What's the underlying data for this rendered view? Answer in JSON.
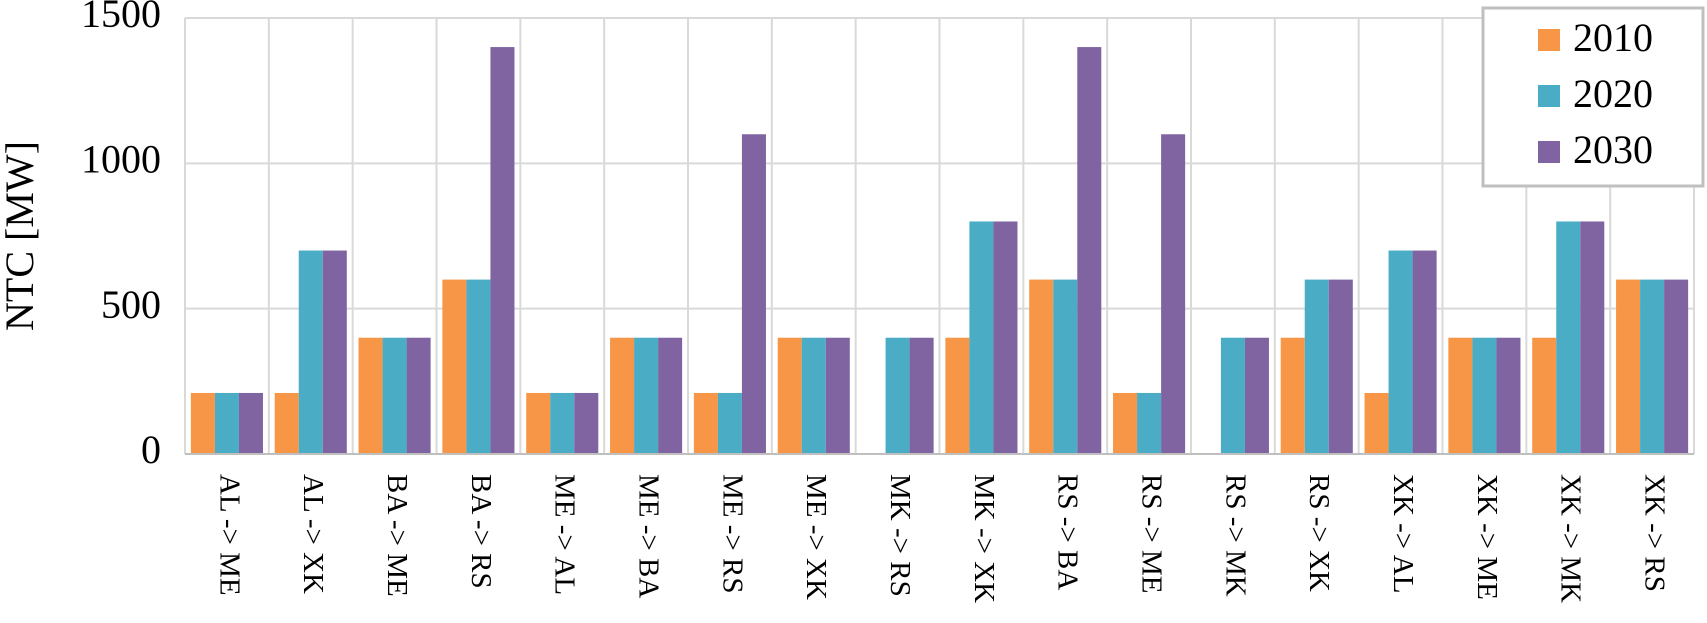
{
  "chart_data": {
    "type": "bar",
    "y_label": "NTC [MW]",
    "categories": [
      "AL -> ME",
      "AL -> XK",
      "BA -> ME",
      "BA -> RS",
      "ME -> AL",
      "ME -> BA",
      "ME -> RS",
      "ME -> XK",
      "MK -> RS",
      "MK -> XK",
      "RS -> BA",
      "RS -> ME",
      "RS -> MK",
      "RS -> XK",
      "XK -> AL",
      "XK -> ME",
      "XK -> MK",
      "XK -> RS"
    ],
    "series": [
      {
        "name": "2010",
        "color": "#f79646",
        "values": [
          210,
          210,
          400,
          600,
          210,
          400,
          210,
          400,
          0,
          400,
          600,
          210,
          0,
          400,
          210,
          400,
          400,
          600
        ]
      },
      {
        "name": "2020",
        "color": "#4bacc6",
        "values": [
          210,
          700,
          400,
          600,
          210,
          400,
          210,
          400,
          400,
          800,
          600,
          210,
          400,
          600,
          700,
          400,
          800,
          600
        ]
      },
      {
        "name": "2030",
        "color": "#8064a2",
        "values": [
          210,
          700,
          400,
          1400,
          210,
          400,
          1100,
          400,
          400,
          800,
          1400,
          1100,
          400,
          600,
          700,
          400,
          800,
          600
        ]
      }
    ],
    "ylim": [
      0,
      1500
    ],
    "yticks": [
      0,
      500,
      1000,
      1500
    ],
    "grid": true,
    "legend": "top-right"
  }
}
